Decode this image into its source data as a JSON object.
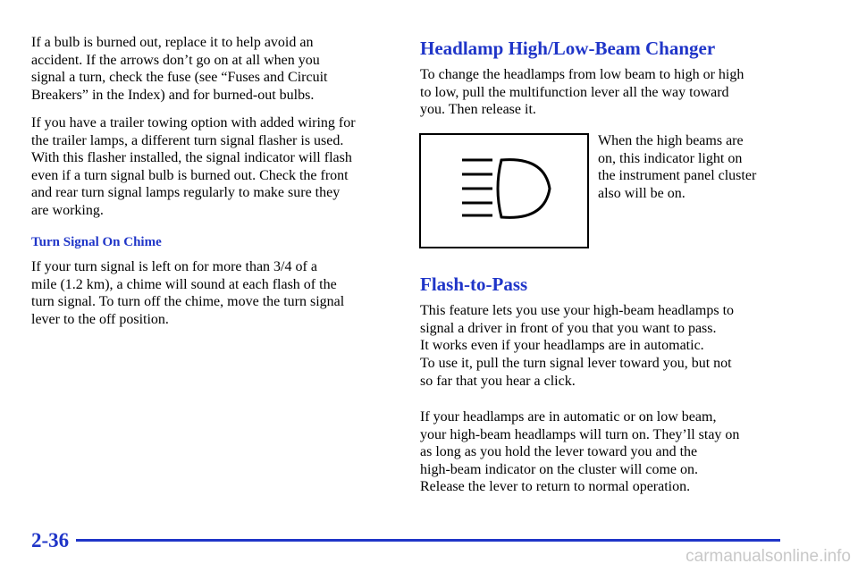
{
  "left_column": {
    "paragraphs": [
      [
        "If a bulb is burned out, replace it to help avoid an",
        "accident. If the arrows don’t go on at all when you",
        "signal a turn, check the fuse (see “Fuses and Circuit",
        "Breakers” in the Index) and for burned-out bulbs."
      ],
      [
        "If you have a trailer towing option with added wiring for",
        "the trailer lamps, a different turn signal flasher is used.",
        "With this flasher installed, the signal indicator will flash",
        "even if a turn signal bulb is burned out. Check the front",
        "and rear turn signal lamps regularly to make sure they",
        "are working."
      ]
    ],
    "subheading": "Turn Signal On Chime",
    "subheading_paragraph": [
      "If your turn signal is left on for more than 3/4 of a",
      "mile (1.2 km), a chime will sound at each flash of the",
      "turn signal. To turn off the chime, move the turn signal",
      "lever to the off position."
    ]
  },
  "right_column": {
    "heading": "Headlamp High/Low-Beam Changer",
    "paragraph": [
      "To change the headlamps from low beam to high or high",
      "to low, pull the multifunction lever all the way toward",
      "you. Then release it."
    ],
    "figure_caption": [
      "When the high beams are",
      "on, this indicator light on",
      "the instrument panel cluster",
      "also will be on."
    ],
    "heading2": "Flash-to-Pass",
    "paragraphs": [
      [
        "This feature lets you use your high-beam headlamps to",
        "signal a driver in front of you that you want to pass.",
        "It works even if your headlamps are in automatic."
      ],
      [
        "To use it, pull the turn signal lever toward you, but not",
        "so far that you hear a click."
      ],
      [
        "If your headlamps are in automatic or on low beam,",
        "your high-beam headlamps will turn on. They’ll stay on",
        "as long as you hold the lever toward you and the",
        "high-beam indicator on the cluster will come on.",
        "Release the lever to return to normal operation."
      ]
    ]
  },
  "footer": {
    "page_number": "2-36",
    "watermark": "carmanualsonline.info"
  }
}
